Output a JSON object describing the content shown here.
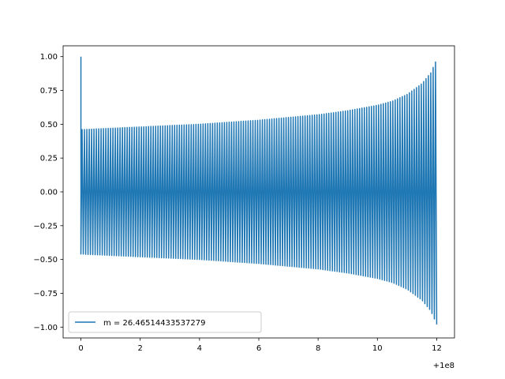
{
  "chart_data": {
    "type": "line",
    "title": "",
    "xlabel": "",
    "ylabel": "",
    "x_offset_label": "+1e8",
    "xlim": [
      -0.6,
      12.6
    ],
    "ylim": [
      -1.08,
      1.08
    ],
    "x_ticks": [
      0,
      2,
      4,
      6,
      8,
      10,
      12
    ],
    "x_tick_labels": [
      "0",
      "2",
      "4",
      "6",
      "8",
      "10",
      "12"
    ],
    "y_ticks": [
      1.0,
      0.75,
      0.5,
      0.25,
      0.0,
      -0.25,
      -0.5,
      -0.75,
      -1.0
    ],
    "y_tick_labels": [
      "1.00",
      "0.75",
      "0.50",
      "0.25",
      "0.00",
      "−0.25",
      "−0.50",
      "−0.75",
      "−1.00"
    ],
    "grid": false,
    "legend_position": "lower-left",
    "series": [
      {
        "name": "m = 26.46514433537279",
        "color": "#1f77b4",
        "initial_spike": 1.0,
        "cycles": 150,
        "envelope": {
          "x": [
            0,
            2,
            4,
            6,
            8,
            9,
            10,
            10.5,
            11,
            11.5,
            11.8,
            12
          ],
          "amplitude": [
            0.46,
            0.48,
            0.5,
            0.53,
            0.57,
            0.6,
            0.64,
            0.67,
            0.72,
            0.8,
            0.88,
            0.98
          ]
        }
      }
    ]
  }
}
